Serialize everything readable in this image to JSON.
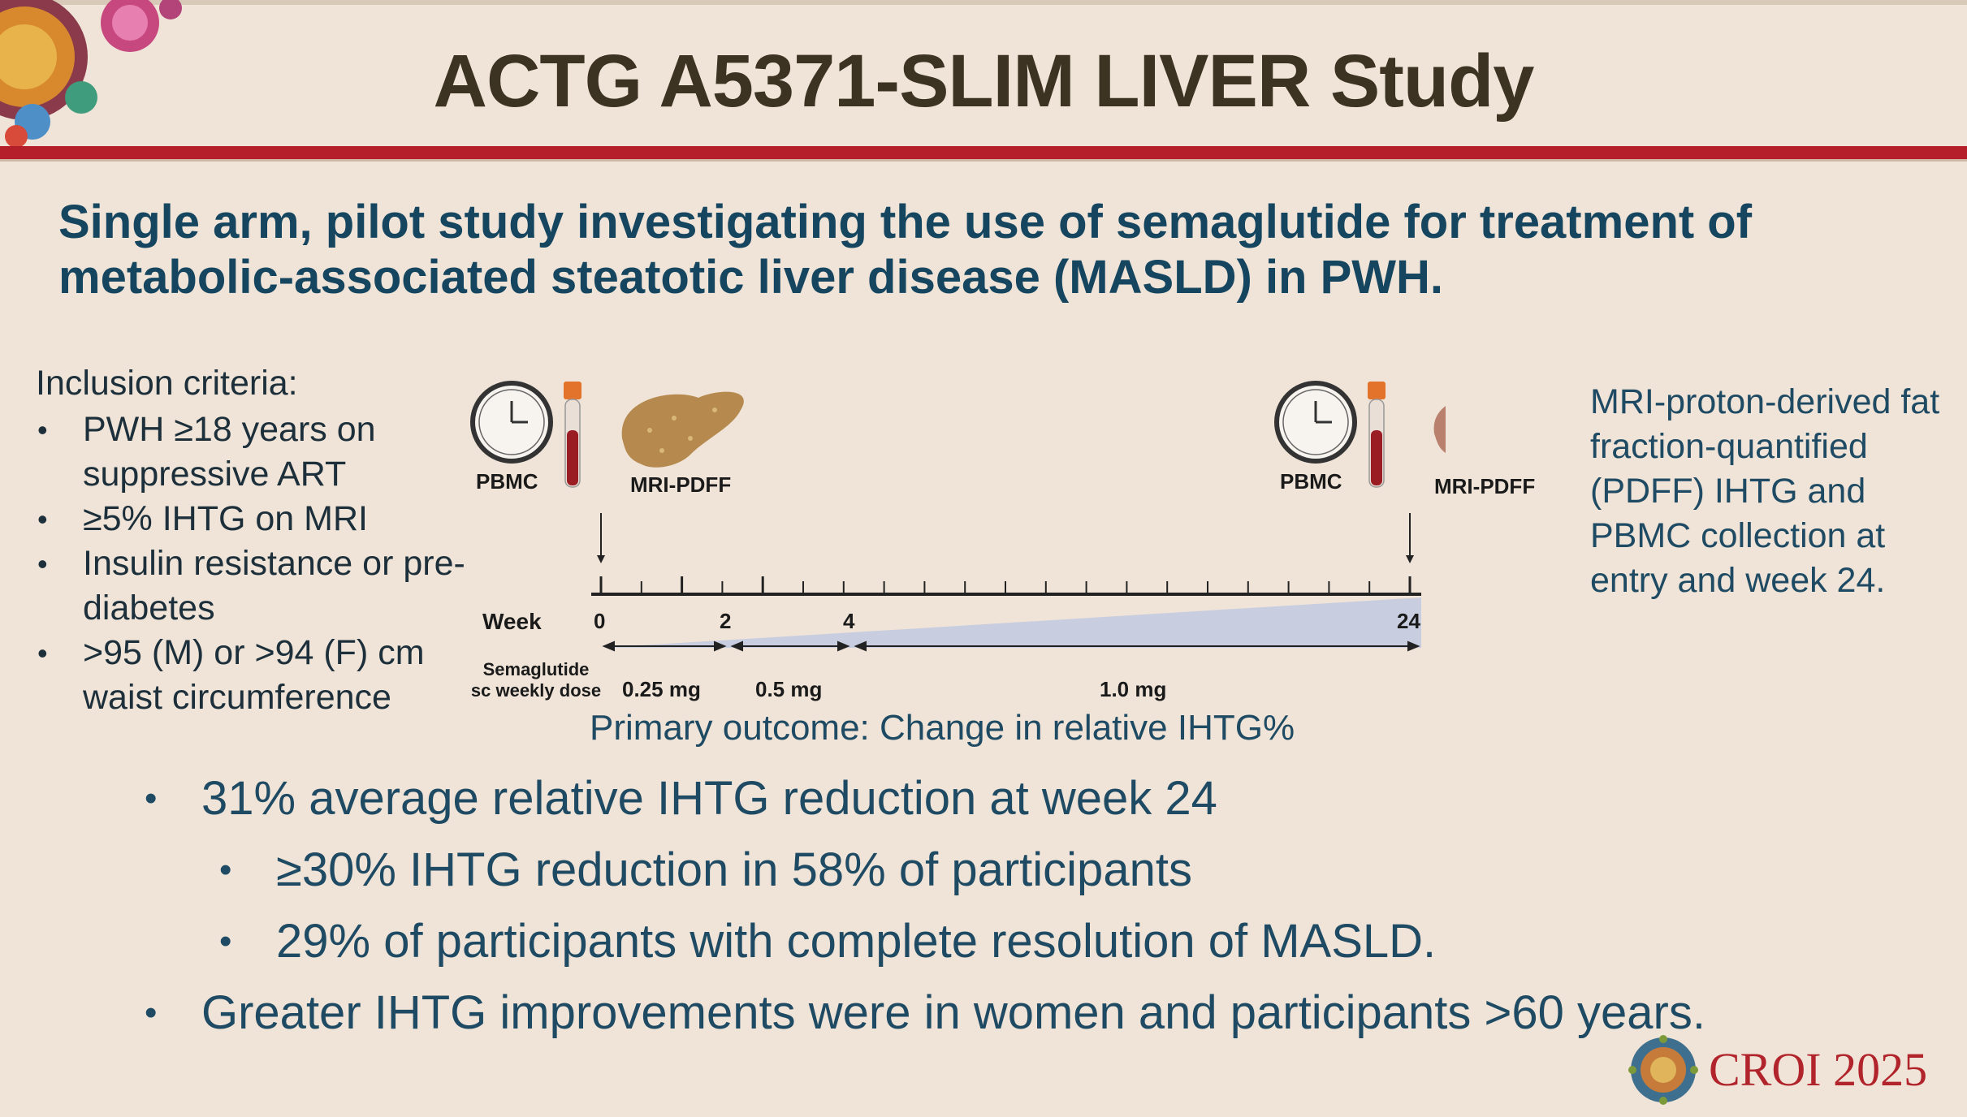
{
  "header": {
    "title": "ACTG A5371-SLIM LIVER Study"
  },
  "subtitle": "Single arm, pilot study investigating the use of semaglutide for treatment of metabolic-associated steatotic liver disease (MASLD) in PWH.",
  "inclusion": {
    "title": "Inclusion criteria:",
    "items": [
      "PWH ≥18 years on suppressive ART",
      "≥5% IHTG on MRI",
      "Insulin resistance or pre-diabetes",
      ">95 (M) or >94 (F) cm waist circumference"
    ]
  },
  "diagram": {
    "pbmc_left": "PBMC",
    "mri_left": "MRI-PDFF",
    "pbmc_right": "PBMC",
    "mri_right": "MRI-PDFF",
    "week_label": "Week",
    "ticks": [
      "0",
      "2",
      "4",
      "24"
    ],
    "dose_label_line1": "Semaglutide",
    "dose_label_line2": "sc weekly dose",
    "doses": [
      "0.25 mg",
      "0.5 mg",
      "1.0 mg"
    ]
  },
  "right_note": "MRI-proton-derived fat fraction-quantified (PDFF) IHTG and PBMC collection at entry and week 24.",
  "primary_outcome": "Primary outcome: Change in relative IHTG%",
  "results": {
    "b1": "31% average relative IHTG reduction at week 24",
    "b1_sub1": "≥30% IHTG reduction in 58% of participants",
    "b1_sub2": "29% of participants with complete resolution of MASLD.",
    "b2": "Greater IHTG improvements were in women and participants >60 years."
  },
  "footer": {
    "logo_text": "CROI 2025"
  },
  "colors": {
    "background": "#efe4d7",
    "title": "#3c3323",
    "accent_red": "#b41f2a",
    "subtitle_blue": "#16455f",
    "body_blue": "#1f4a63"
  },
  "icons": [
    "virus-cluster-icon",
    "clock-icon",
    "blood-tube-icon",
    "liver-icon",
    "croi-virus-logo-icon"
  ]
}
